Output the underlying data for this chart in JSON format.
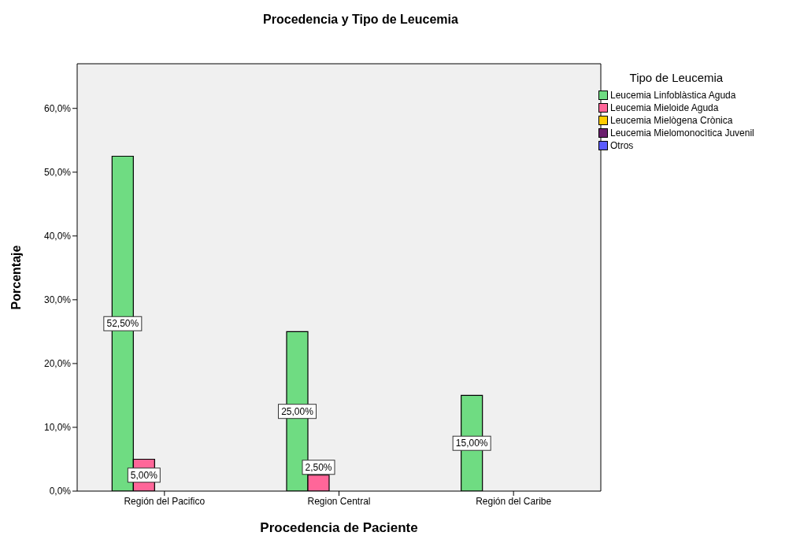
{
  "chart_data": {
    "type": "bar",
    "title": "Procedencia y Tipo de Leucemia",
    "xlabel": "Procedencia de Paciente",
    "ylabel": "Porcentaje",
    "legend_title": "Tipo de Leucemia",
    "categories": [
      "Región del Pacifico",
      "Region Central",
      "Región del Caribe"
    ],
    "series": [
      {
        "name": "Leucemia Linfoblàstica Aguda",
        "color": "#6fdc82",
        "values": [
          52.5,
          25,
          15
        ],
        "value_labels": [
          "52,50%",
          "25,00%",
          "15,00%"
        ]
      },
      {
        "name": "Leucemia Mieloide Aguda",
        "color": "#ff6699",
        "values": [
          5,
          2.5,
          0
        ],
        "value_labels": [
          "5,00%",
          "2,50%",
          null
        ]
      },
      {
        "name": "Leucemia Mielògena Crònica",
        "color": "#ffcc00",
        "values": [
          null,
          null,
          null
        ]
      },
      {
        "name": "Leucemia Mielomonocìtica Juvenil",
        "color": "#6b1f6e",
        "values": [
          null,
          null,
          null
        ]
      },
      {
        "name": "Otros",
        "color": "#5a5aff",
        "values": [
          null,
          null,
          null
        ]
      }
    ],
    "ylim": [
      0,
      67
    ],
    "yticks": [
      {
        "value": 0,
        "label": "0,0%"
      },
      {
        "value": 10,
        "label": "10,0%"
      },
      {
        "value": 20,
        "label": "20,0%"
      },
      {
        "value": 30,
        "label": "30,0%"
      },
      {
        "value": 40,
        "label": "40,0%"
      },
      {
        "value": 50,
        "label": "50,0%"
      },
      {
        "value": 60,
        "label": "60,0%"
      }
    ],
    "grid": false,
    "legend": "top right"
  }
}
